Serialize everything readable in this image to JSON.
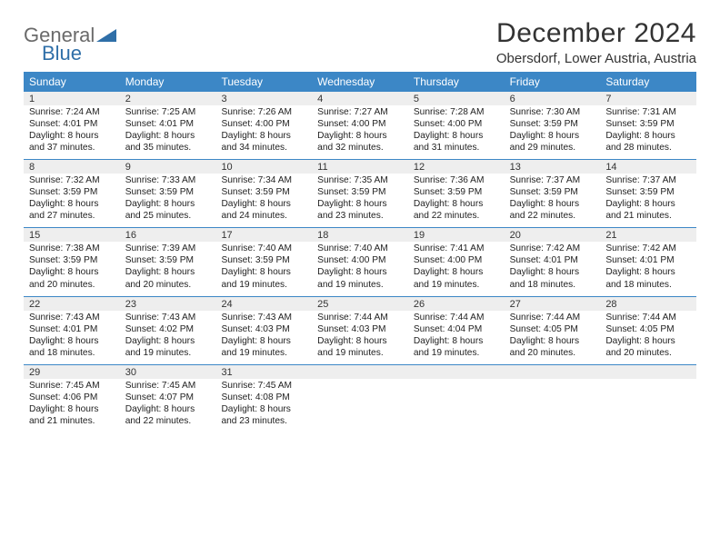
{
  "logo": {
    "text1": "General",
    "text2": "Blue"
  },
  "title": "December 2024",
  "location": "Obersdorf, Lower Austria, Austria",
  "colors": {
    "header_bg": "#3c87c6",
    "header_text": "#ffffff",
    "daynum_bg": "#eeeeee",
    "week_border": "#3c87c6",
    "logo_gray": "#6a6a6a",
    "logo_blue": "#2f6fa8",
    "text": "#222222",
    "title_text": "#333333"
  },
  "day_names": [
    "Sunday",
    "Monday",
    "Tuesday",
    "Wednesday",
    "Thursday",
    "Friday",
    "Saturday"
  ],
  "weeks": [
    [
      {
        "n": "1",
        "sr": "7:24 AM",
        "ss": "4:01 PM",
        "dl": "8 hours and 37 minutes."
      },
      {
        "n": "2",
        "sr": "7:25 AM",
        "ss": "4:01 PM",
        "dl": "8 hours and 35 minutes."
      },
      {
        "n": "3",
        "sr": "7:26 AM",
        "ss": "4:00 PM",
        "dl": "8 hours and 34 minutes."
      },
      {
        "n": "4",
        "sr": "7:27 AM",
        "ss": "4:00 PM",
        "dl": "8 hours and 32 minutes."
      },
      {
        "n": "5",
        "sr": "7:28 AM",
        "ss": "4:00 PM",
        "dl": "8 hours and 31 minutes."
      },
      {
        "n": "6",
        "sr": "7:30 AM",
        "ss": "3:59 PM",
        "dl": "8 hours and 29 minutes."
      },
      {
        "n": "7",
        "sr": "7:31 AM",
        "ss": "3:59 PM",
        "dl": "8 hours and 28 minutes."
      }
    ],
    [
      {
        "n": "8",
        "sr": "7:32 AM",
        "ss": "3:59 PM",
        "dl": "8 hours and 27 minutes."
      },
      {
        "n": "9",
        "sr": "7:33 AM",
        "ss": "3:59 PM",
        "dl": "8 hours and 25 minutes."
      },
      {
        "n": "10",
        "sr": "7:34 AM",
        "ss": "3:59 PM",
        "dl": "8 hours and 24 minutes."
      },
      {
        "n": "11",
        "sr": "7:35 AM",
        "ss": "3:59 PM",
        "dl": "8 hours and 23 minutes."
      },
      {
        "n": "12",
        "sr": "7:36 AM",
        "ss": "3:59 PM",
        "dl": "8 hours and 22 minutes."
      },
      {
        "n": "13",
        "sr": "7:37 AM",
        "ss": "3:59 PM",
        "dl": "8 hours and 22 minutes."
      },
      {
        "n": "14",
        "sr": "7:37 AM",
        "ss": "3:59 PM",
        "dl": "8 hours and 21 minutes."
      }
    ],
    [
      {
        "n": "15",
        "sr": "7:38 AM",
        "ss": "3:59 PM",
        "dl": "8 hours and 20 minutes."
      },
      {
        "n": "16",
        "sr": "7:39 AM",
        "ss": "3:59 PM",
        "dl": "8 hours and 20 minutes."
      },
      {
        "n": "17",
        "sr": "7:40 AM",
        "ss": "3:59 PM",
        "dl": "8 hours and 19 minutes."
      },
      {
        "n": "18",
        "sr": "7:40 AM",
        "ss": "4:00 PM",
        "dl": "8 hours and 19 minutes."
      },
      {
        "n": "19",
        "sr": "7:41 AM",
        "ss": "4:00 PM",
        "dl": "8 hours and 19 minutes."
      },
      {
        "n": "20",
        "sr": "7:42 AM",
        "ss": "4:01 PM",
        "dl": "8 hours and 18 minutes."
      },
      {
        "n": "21",
        "sr": "7:42 AM",
        "ss": "4:01 PM",
        "dl": "8 hours and 18 minutes."
      }
    ],
    [
      {
        "n": "22",
        "sr": "7:43 AM",
        "ss": "4:01 PM",
        "dl": "8 hours and 18 minutes."
      },
      {
        "n": "23",
        "sr": "7:43 AM",
        "ss": "4:02 PM",
        "dl": "8 hours and 19 minutes."
      },
      {
        "n": "24",
        "sr": "7:43 AM",
        "ss": "4:03 PM",
        "dl": "8 hours and 19 minutes."
      },
      {
        "n": "25",
        "sr": "7:44 AM",
        "ss": "4:03 PM",
        "dl": "8 hours and 19 minutes."
      },
      {
        "n": "26",
        "sr": "7:44 AM",
        "ss": "4:04 PM",
        "dl": "8 hours and 19 minutes."
      },
      {
        "n": "27",
        "sr": "7:44 AM",
        "ss": "4:05 PM",
        "dl": "8 hours and 20 minutes."
      },
      {
        "n": "28",
        "sr": "7:44 AM",
        "ss": "4:05 PM",
        "dl": "8 hours and 20 minutes."
      }
    ],
    [
      {
        "n": "29",
        "sr": "7:45 AM",
        "ss": "4:06 PM",
        "dl": "8 hours and 21 minutes."
      },
      {
        "n": "30",
        "sr": "7:45 AM",
        "ss": "4:07 PM",
        "dl": "8 hours and 22 minutes."
      },
      {
        "n": "31",
        "sr": "7:45 AM",
        "ss": "4:08 PM",
        "dl": "8 hours and 23 minutes."
      },
      {
        "n": "",
        "sr": "",
        "ss": "",
        "dl": ""
      },
      {
        "n": "",
        "sr": "",
        "ss": "",
        "dl": ""
      },
      {
        "n": "",
        "sr": "",
        "ss": "",
        "dl": ""
      },
      {
        "n": "",
        "sr": "",
        "ss": "",
        "dl": ""
      }
    ]
  ],
  "labels": {
    "sunrise": "Sunrise:",
    "sunset": "Sunset:",
    "daylight": "Daylight:"
  }
}
